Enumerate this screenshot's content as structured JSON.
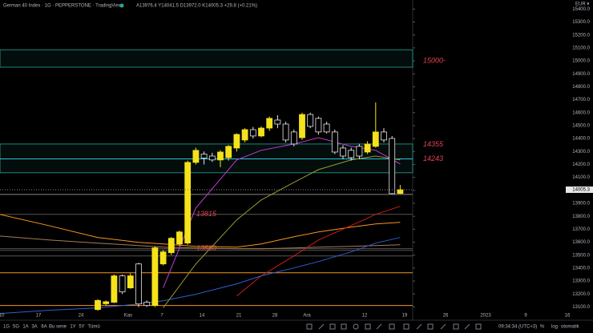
{
  "header": {
    "symbol": "German 40 Index · 1G · PEPPERSTONE · TradingView",
    "ohlc": "A13976.4 Y14041.5 D13972.0 K14005.3 +29.8 (+0.21%)",
    "currency": "EUR ▾"
  },
  "toolbar": {
    "ranges": [
      "1G",
      "5G",
      "1A",
      "3A",
      "6A",
      "Bu sene",
      "1Y",
      "5Y",
      "Tümü"
    ],
    "clock": "09:34:34 (UTC+3)",
    "options": [
      "%",
      "log",
      "otomatik"
    ]
  },
  "chart_data": {
    "type": "candlestick",
    "up_color": "#f5e21b",
    "down_color": "#000000",
    "down_border": "#e6e6e6",
    "ylim": [
      13010,
      15470
    ],
    "yticks": [
      {
        "value": 13100,
        "label": "13100.0"
      },
      {
        "value": 13200,
        "label": "13200.0"
      },
      {
        "value": 13300,
        "label": "13300.0"
      },
      {
        "value": 13400,
        "label": "13400.0"
      },
      {
        "value": 13500,
        "label": "13500.0"
      },
      {
        "value": 13600,
        "label": "13600.0"
      },
      {
        "value": 13700,
        "label": "13700.0"
      },
      {
        "value": 13800,
        "label": "13800.0"
      },
      {
        "value": 13900,
        "label": "13900.0"
      },
      {
        "value": 14000,
        "label": "14000.0"
      },
      {
        "value": 14100,
        "label": "14100.0"
      },
      {
        "value": 14200,
        "label": "14200.0"
      },
      {
        "value": 14300,
        "label": "14300.0"
      },
      {
        "value": 14400,
        "label": "14400.0"
      },
      {
        "value": 14500,
        "label": "14500.0"
      },
      {
        "value": 14600,
        "label": "14600.0"
      },
      {
        "value": 14700,
        "label": "14700.0"
      },
      {
        "value": 14800,
        "label": "14800.0"
      },
      {
        "value": 14900,
        "label": "14900.0"
      },
      {
        "value": 15000,
        "label": "15000.0"
      },
      {
        "value": 15100,
        "label": "15100.0"
      },
      {
        "value": 15200,
        "label": "15200.0"
      },
      {
        "value": 15300,
        "label": "15300.0"
      },
      {
        "value": 15400,
        "label": "15400.0"
      }
    ],
    "x_labels": [
      "10",
      "17",
      "24",
      "Kas",
      "7",
      "14",
      "21",
      "28",
      "Ara",
      "12",
      "19",
      "26",
      "2023",
      "9",
      "16"
    ],
    "current_price": {
      "value": 14005.3,
      "label": "14005.3"
    },
    "open": [
      13080,
      13125,
      13136,
      13340,
      13247,
      13432,
      13136,
      13111,
      13432,
      13519,
      13586,
      13593,
      14216,
      14280,
      14265,
      14235,
      14253,
      14327,
      14389,
      14469,
      14420,
      14481,
      14543,
      14512,
      14451,
      14407,
      14586,
      14556,
      14512,
      14451,
      14327,
      14309,
      14340,
      14296,
      14340,
      14451,
      14401,
      13976.4
    ],
    "high": [
      13160,
      13150,
      13350,
      13350,
      13360,
      13440,
      13150,
      13570,
      13540,
      13640,
      13690,
      14230,
      14330,
      14300,
      14290,
      14310,
      14350,
      14440,
      14480,
      14490,
      14495,
      14570,
      14580,
      14530,
      14470,
      14600,
      14600,
      14570,
      14530,
      14470,
      14350,
      14330,
      14360,
      14380,
      14679,
      14480,
      14420,
      14041.5
    ],
    "low": [
      13070,
      13110,
      13130,
      13200,
      13240,
      13100,
      13100,
      13100,
      13420,
      13500,
      13570,
      13580,
      14200,
      14200,
      14220,
      14180,
      14230,
      14300,
      14370,
      14400,
      14410,
      14460,
      14480,
      14370,
      14340,
      14390,
      14480,
      14430,
      14440,
      14280,
      14240,
      14230,
      14240,
      14280,
      14330,
      14370,
      13969,
      13972.0
    ],
    "close": [
      13150,
      13140,
      13340,
      13216,
      13340,
      13123,
      13111,
      13556,
      13525,
      13630,
      13679,
      14216,
      14309,
      14250,
      14235,
      14296,
      14340,
      14432,
      14469,
      14420,
      14481,
      14556,
      14512,
      14389,
      14358,
      14586,
      14494,
      14451,
      14451,
      14296,
      14265,
      14253,
      14265,
      14358,
      14451,
      14389,
      13975,
      14005.3
    ],
    "ma_x": [
      -12,
      -6,
      0,
      5,
      8,
      12,
      17,
      20,
      24,
      27,
      31,
      34,
      37
    ],
    "moving_averages": [
      {
        "color": "#f7941d",
        "values": [
          13815,
          13728,
          13636,
          13599,
          13586,
          13568,
          13562,
          13586,
          13642,
          13679,
          13716,
          13741,
          13753
        ]
      },
      {
        "color": "#a67c52",
        "values": [
          13648,
          13617,
          13593,
          13574,
          13562,
          13556,
          13549,
          13549,
          13556,
          13562,
          13568,
          13574,
          13580
        ]
      },
      {
        "color": "#d01c1c",
        "values": [
          null,
          null,
          null,
          null,
          null,
          null,
          13185,
          13340,
          13494,
          13617,
          13728,
          13815,
          13877
        ]
      },
      {
        "color": "#2f5fd0",
        "values": [
          13049,
          13074,
          13093,
          13123,
          13148,
          13198,
          13278,
          13340,
          13401,
          13451,
          13525,
          13593,
          13636
        ]
      },
      {
        "color": "#9c9a2e",
        "values": [
          null,
          null,
          null,
          null,
          13093,
          13432,
          13772,
          13926,
          14062,
          14160,
          14235,
          14265,
          14235
        ]
      },
      {
        "color": "#c23bd4",
        "values": [
          null,
          null,
          null,
          null,
          13247,
          13864,
          14235,
          14309,
          14358,
          14407,
          14340,
          14309,
          14204
        ]
      }
    ],
    "zones": [
      {
        "top": 15086,
        "bottom": 14951,
        "color": "#26a69a"
      },
      {
        "top": 14358,
        "bottom": 14136,
        "color": "#26a69a"
      }
    ],
    "levels": [
      {
        "value": 15000,
        "label": "15000-"
      },
      {
        "value": 14355,
        "label": "14355"
      },
      {
        "value": 14243,
        "label": "14243",
        "line_color": "#26c6da"
      },
      {
        "value": 13815,
        "label": "13815",
        "line_color": "#555555"
      },
      {
        "value": 13550,
        "label": "13550",
        "line_color": "#555555"
      }
    ],
    "lines": [
      {
        "value": 13969,
        "color": "#888888"
      },
      {
        "value": 13537,
        "color": "#555555"
      },
      {
        "value": 13494,
        "color": "#555555"
      },
      {
        "value": 13364,
        "color": "#f7941d"
      },
      {
        "value": 13111,
        "color": "#f7941d"
      }
    ]
  }
}
